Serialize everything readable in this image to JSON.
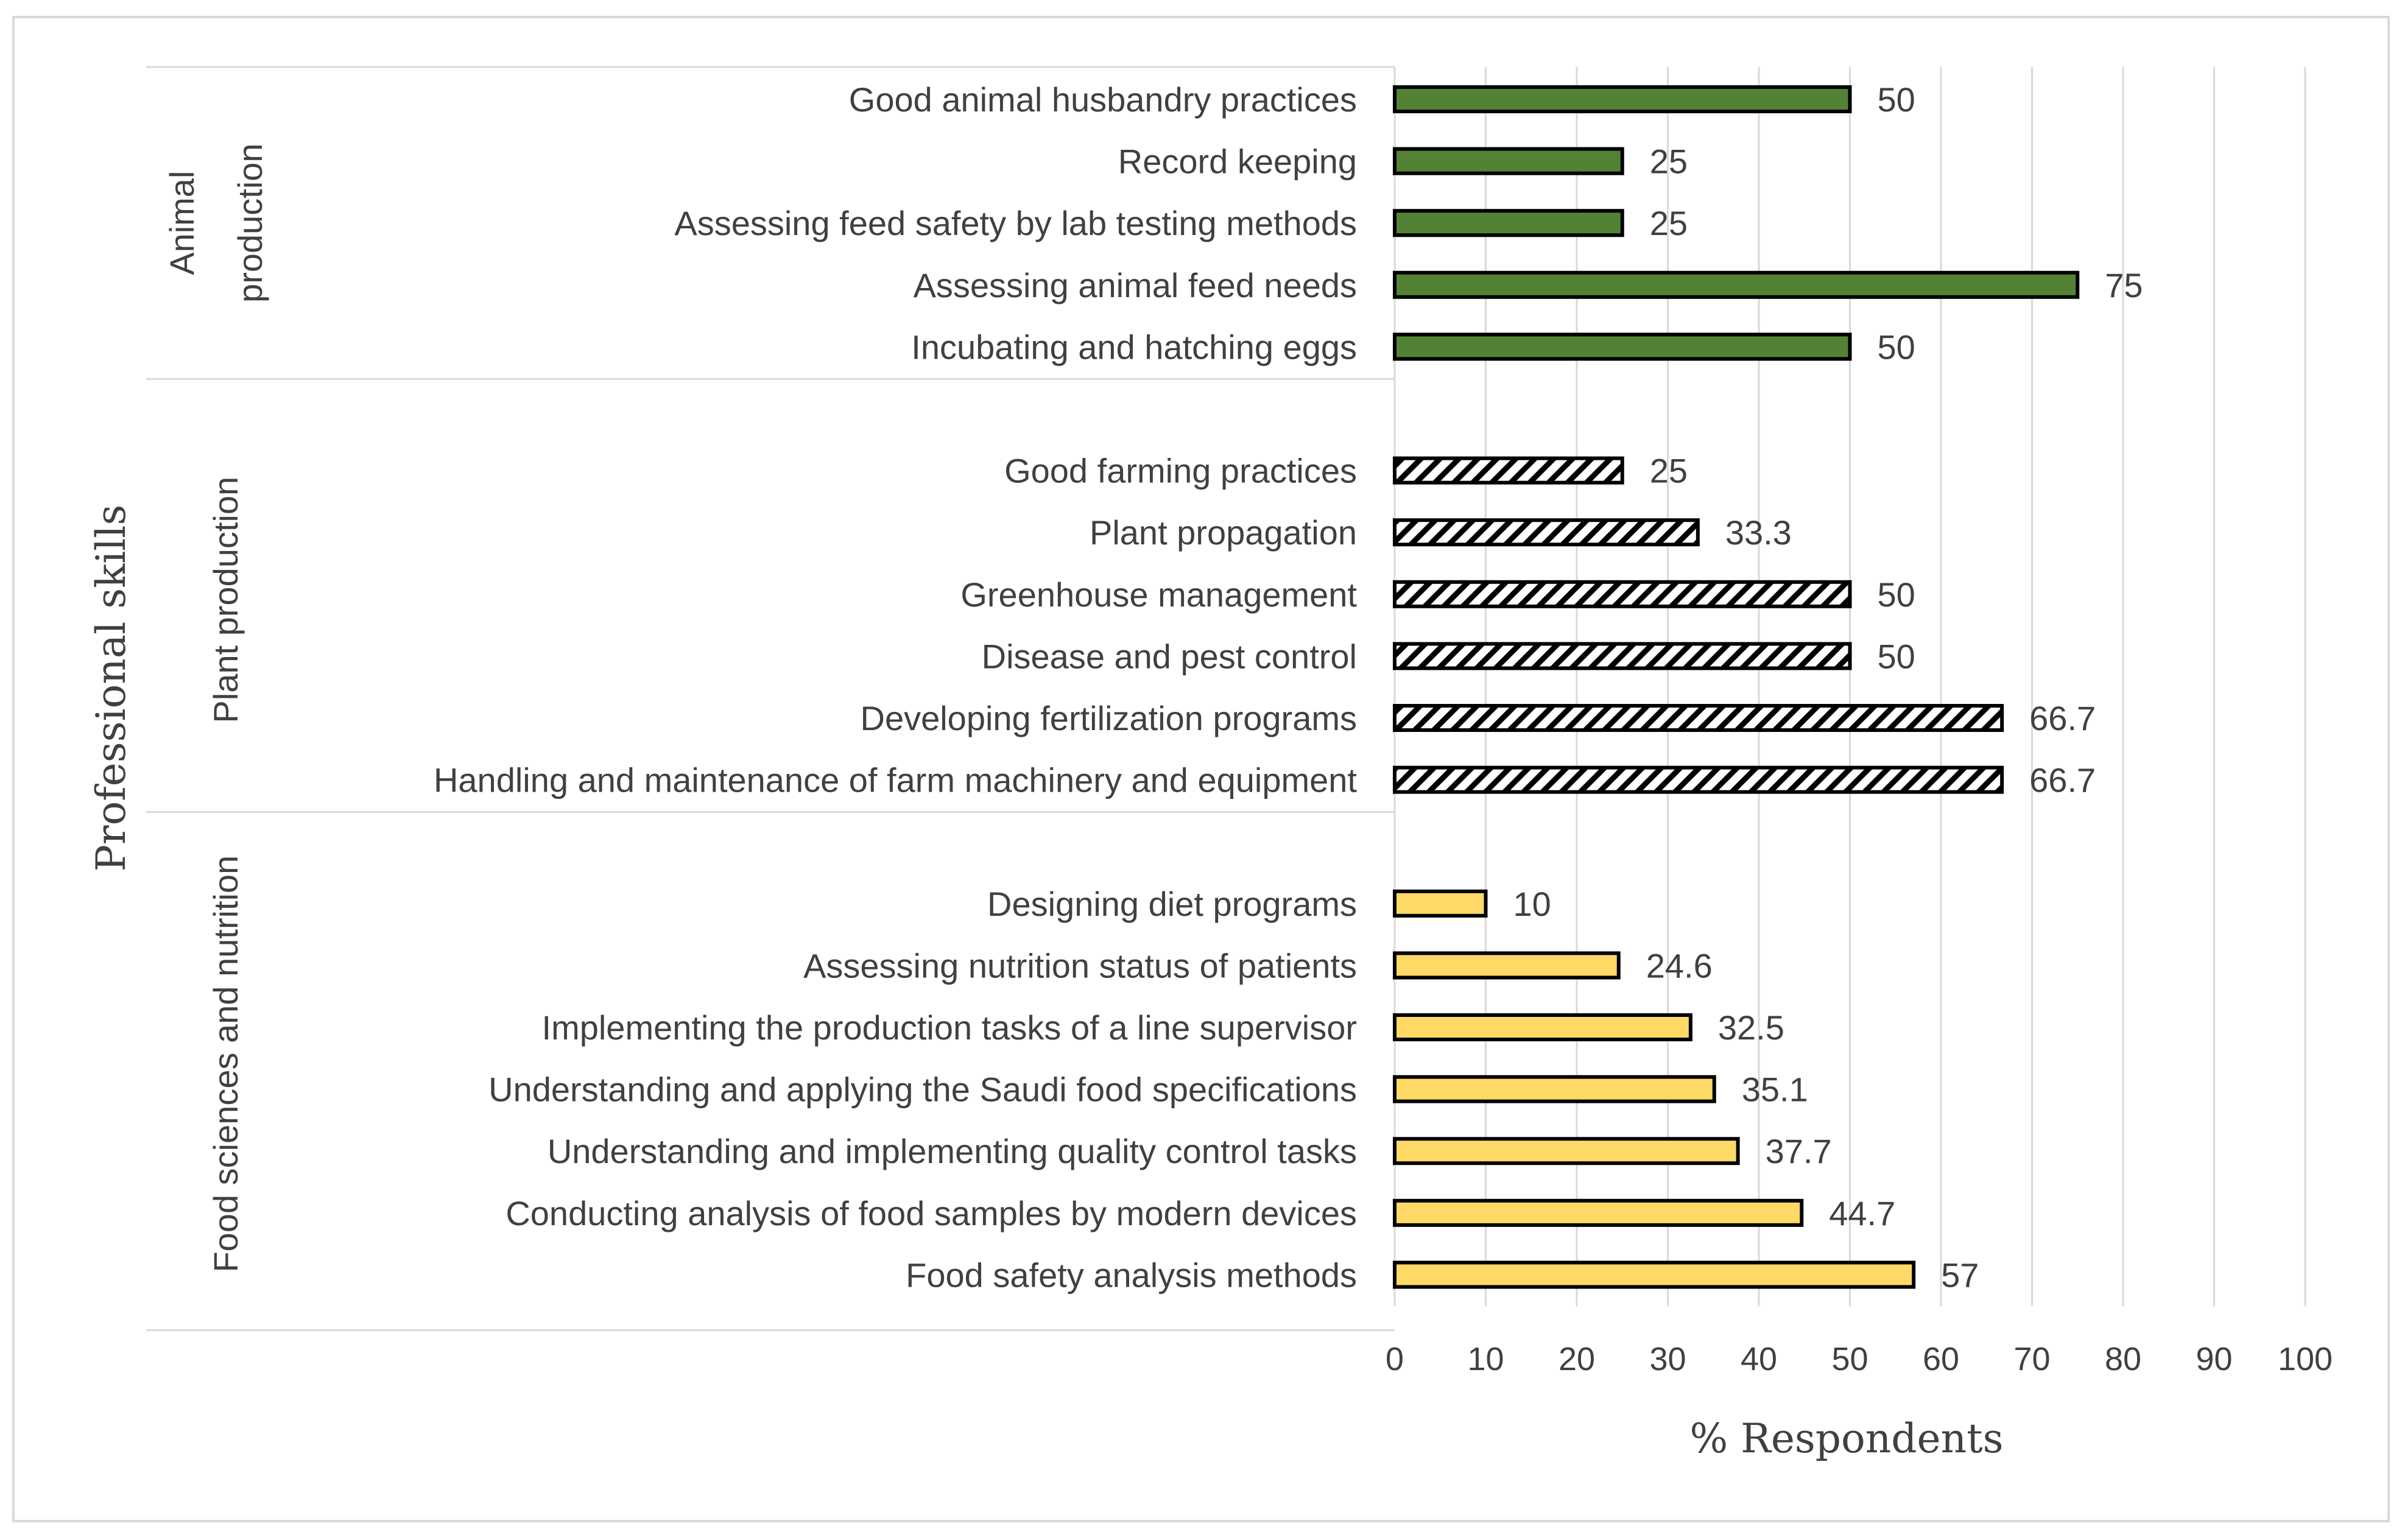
{
  "chart_data": {
    "type": "bar",
    "orientation": "horizontal",
    "title": "",
    "xlabel": "% Respondents",
    "ylabel": "Professional skills",
    "xlim": [
      0,
      100
    ],
    "xticks": [
      "0",
      "10",
      "20",
      "30",
      "40",
      "50",
      "60",
      "70",
      "80",
      "90",
      "100"
    ],
    "grid": true,
    "groups": [
      {
        "name": "Animal production",
        "name_lines": [
          "Animal",
          "production"
        ],
        "pattern": "solid",
        "color": "#548235",
        "items": [
          {
            "label": "Good animal husbandry practices",
            "value": 50,
            "value_label": "50"
          },
          {
            "label": "Record keeping",
            "value": 25,
            "value_label": "25"
          },
          {
            "label": "Assessing feed safety by lab testing methods",
            "value": 25,
            "value_label": "25"
          },
          {
            "label": "Assessing animal feed needs",
            "value": 75,
            "value_label": "75"
          },
          {
            "label": "Incubating and hatching eggs",
            "value": 50,
            "value_label": "50"
          }
        ]
      },
      {
        "name": "Plant production",
        "name_lines": [
          "Plant production"
        ],
        "pattern": "hatch",
        "color": "#000000",
        "items": [
          {
            "label": "Good farming practices",
            "value": 25,
            "value_label": "25"
          },
          {
            "label": "Plant propagation",
            "value": 33.3,
            "value_label": "33.3"
          },
          {
            "label": "Greenhouse management",
            "value": 50,
            "value_label": "50"
          },
          {
            "label": "Disease and pest control",
            "value": 50,
            "value_label": "50"
          },
          {
            "label": "Developing fertilization programs",
            "value": 66.7,
            "value_label": "66.7"
          },
          {
            "label": "Handling and maintenance of farm machinery and equipment",
            "value": 66.7,
            "value_label": "66.7"
          }
        ]
      },
      {
        "name": "Food sciences and nutrition",
        "name_lines": [
          "Food sciences and nutrition"
        ],
        "pattern": "solid",
        "color": "#FFD966",
        "items": [
          {
            "label": "Designing diet programs",
            "value": 10,
            "value_label": "10"
          },
          {
            "label": "Assessing nutrition status of patients",
            "value": 24.6,
            "value_label": "24.6"
          },
          {
            "label": "Implementing the production tasks of a line supervisor",
            "value": 32.5,
            "value_label": "32.5"
          },
          {
            "label": "Understanding and applying the Saudi food specifications",
            "value": 35.1,
            "value_label": "35.1"
          },
          {
            "label": "Understanding and implementing  quality control tasks",
            "value": 37.7,
            "value_label": "37.7"
          },
          {
            "label": "Conducting analysis of food samples by modern devices",
            "value": 44.7,
            "value_label": "44.7"
          },
          {
            "label": "Food safety analysis methods",
            "value": 57,
            "value_label": "57"
          }
        ]
      }
    ]
  }
}
